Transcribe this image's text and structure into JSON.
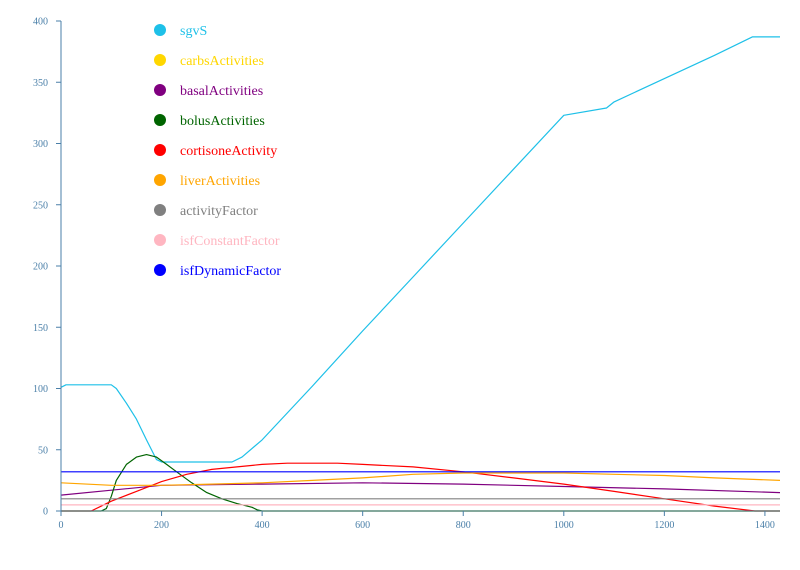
{
  "chart_data": {
    "type": "line",
    "axis_color": "#4a7fa8",
    "tick_label_color": "#4a7fa8",
    "xlim": [
      0,
      1430
    ],
    "ylim": [
      0,
      400
    ],
    "x_ticks": [
      {
        "value": 0,
        "label": "0"
      },
      {
        "value": 200,
        "label": "200"
      },
      {
        "value": 400,
        "label": "400"
      },
      {
        "value": 600,
        "label": "600"
      },
      {
        "value": 800,
        "label": "800"
      },
      {
        "value": 1000,
        "label": "1000"
      },
      {
        "value": 1200,
        "label": "1200"
      },
      {
        "value": 1400,
        "label": "1400"
      }
    ],
    "y_ticks": [
      {
        "value": 0,
        "label": "0"
      },
      {
        "value": 50,
        "label": "50"
      },
      {
        "value": 100,
        "label": "100"
      },
      {
        "value": 150,
        "label": "150"
      },
      {
        "value": 200,
        "label": "200"
      },
      {
        "value": 250,
        "label": "250"
      },
      {
        "value": 300,
        "label": "300"
      },
      {
        "value": 350,
        "label": "350"
      },
      {
        "value": 400,
        "label": "400"
      }
    ],
    "legend_position": "top-left",
    "series": [
      {
        "name": "sgvS",
        "color": "#1ec0e8",
        "x": [
          0,
          10,
          30,
          60,
          100,
          110,
          130,
          150,
          170,
          190,
          200,
          250,
          300,
          340,
          360,
          400,
          500,
          600,
          700,
          800,
          900,
          1000,
          1085,
          1100,
          1200,
          1300,
          1375,
          1380,
          1430
        ],
        "y": [
          101,
          103,
          103,
          103,
          103,
          100,
          88,
          75,
          58,
          42,
          40,
          40,
          40,
          40,
          44,
          58,
          102,
          147,
          191,
          235,
          279,
          323,
          329,
          334,
          353,
          372,
          387,
          387,
          387
        ]
      },
      {
        "name": "carbsActivities",
        "color": "#ffd700",
        "x": [
          0,
          1430
        ],
        "y": [
          0,
          0
        ]
      },
      {
        "name": "basalActivities",
        "color": "#800080",
        "x": [
          0,
          100,
          200,
          400,
          600,
          800,
          1000,
          1200,
          1430
        ],
        "y": [
          13,
          17,
          21,
          22,
          23,
          22,
          20,
          18,
          15
        ]
      },
      {
        "name": "bolusActivities",
        "color": "#006400",
        "x": [
          0,
          80,
          90,
          100,
          110,
          130,
          150,
          170,
          190,
          210,
          230,
          260,
          290,
          320,
          350,
          380,
          390,
          400,
          1430
        ],
        "y": [
          0,
          0,
          2,
          12,
          25,
          38,
          44,
          46,
          44,
          38,
          32,
          23,
          15,
          10,
          6,
          3,
          1,
          0,
          0
        ]
      },
      {
        "name": "cortisoneActivity",
        "color": "#ff0000",
        "x": [
          0,
          60,
          100,
          150,
          200,
          250,
          300,
          350,
          400,
          450,
          500,
          550,
          600,
          700,
          800,
          900,
          1000,
          1100,
          1200,
          1300,
          1380,
          1430
        ],
        "y": [
          0,
          0,
          8,
          16,
          24,
          30,
          34,
          36,
          38,
          39,
          39,
          39,
          38,
          36,
          32,
          27,
          22,
          16,
          10,
          4,
          0,
          0
        ]
      },
      {
        "name": "liverActivities",
        "color": "#ffa500",
        "x": [
          0,
          100,
          200,
          300,
          400,
          500,
          600,
          700,
          800,
          900,
          1000,
          1100,
          1200,
          1300,
          1430
        ],
        "y": [
          23,
          21,
          21,
          22,
          23,
          25,
          27,
          30,
          31,
          31,
          31,
          30,
          29,
          27,
          25
        ]
      },
      {
        "name": "activityFactor",
        "color": "#808080",
        "x": [
          0,
          1430
        ],
        "y": [
          10,
          10
        ]
      },
      {
        "name": "isfConstantFactor",
        "color": "#ffb6c1",
        "x": [
          0,
          1430
        ],
        "y": [
          5,
          5
        ]
      },
      {
        "name": "isfDynamicFactor",
        "color": "#0000ff",
        "x": [
          0,
          1430
        ],
        "y": [
          32,
          32
        ]
      }
    ]
  }
}
